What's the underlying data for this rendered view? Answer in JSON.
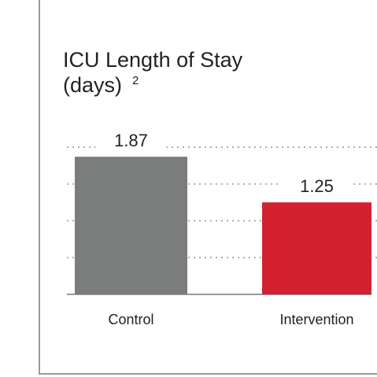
{
  "chart_data": {
    "type": "bar",
    "title_lines": [
      "ICU Length of Stay",
      "(days)"
    ],
    "title_superscript": "2",
    "categories": [
      "Control",
      "Intervention"
    ],
    "values": [
      1.87,
      1.25
    ],
    "colors": [
      "#7b7d7d",
      "#d22232"
    ],
    "ylim": [
      0,
      2
    ],
    "yticks": [
      0,
      0.5,
      1,
      1.5,
      2
    ],
    "grid": true
  }
}
